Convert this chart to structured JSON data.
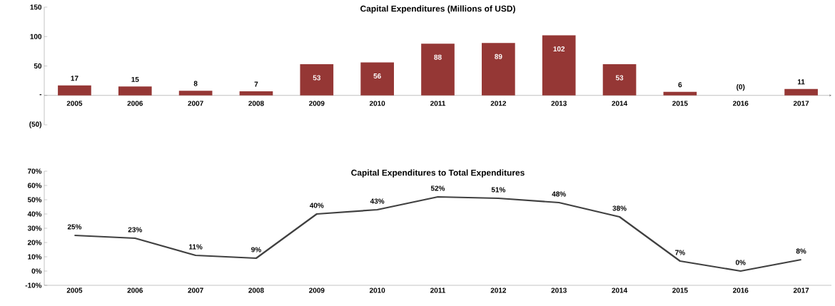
{
  "chart_data": [
    {
      "type": "bar",
      "title": "Capital Expenditures (Millions of USD)",
      "categories": [
        "2005",
        "2006",
        "2007",
        "2008",
        "2009",
        "2010",
        "2011",
        "2012",
        "2013",
        "2014",
        "2015",
        "2016",
        "2017"
      ],
      "values": [
        17,
        15,
        8,
        7,
        53,
        56,
        88,
        89,
        102,
        53,
        6,
        0,
        11
      ],
      "value_labels": [
        "17",
        "15",
        "8",
        "7",
        "53",
        "56",
        "88",
        "89",
        "102",
        "53",
        "6",
        "(0)",
        "11"
      ],
      "color": "#953735",
      "ylim": [
        -50,
        150
      ],
      "yticks": [
        {
          "value": -50,
          "label": "(50)"
        },
        {
          "value": 0,
          "label": "-"
        },
        50,
        100,
        150
      ]
    },
    {
      "type": "line",
      "title": "Capital Expenditures to Total Expenditures",
      "categories": [
        "2005",
        "2006",
        "2007",
        "2008",
        "2009",
        "2010",
        "2011",
        "2012",
        "2013",
        "2014",
        "2015",
        "2016",
        "2017"
      ],
      "values": [
        25,
        23,
        11,
        9,
        40,
        43,
        52,
        51,
        48,
        38,
        7,
        0,
        8
      ],
      "value_labels": [
        "25%",
        "23%",
        "11%",
        "9%",
        "40%",
        "43%",
        "52%",
        "51%",
        "48%",
        "38%",
        "7%",
        "0%",
        "8%"
      ],
      "color": "#404040",
      "ylim": [
        -10,
        70
      ],
      "yticks": [
        {
          "value": -10,
          "label": "-10%"
        },
        {
          "value": 0,
          "label": "0%"
        },
        {
          "value": 10,
          "label": "10%"
        },
        {
          "value": 20,
          "label": "20%"
        },
        {
          "value": 30,
          "label": "30%"
        },
        {
          "value": 40,
          "label": "40%"
        },
        {
          "value": 50,
          "label": "50%"
        },
        {
          "value": 60,
          "label": "60%"
        },
        {
          "value": 70,
          "label": "70%"
        }
      ]
    }
  ]
}
